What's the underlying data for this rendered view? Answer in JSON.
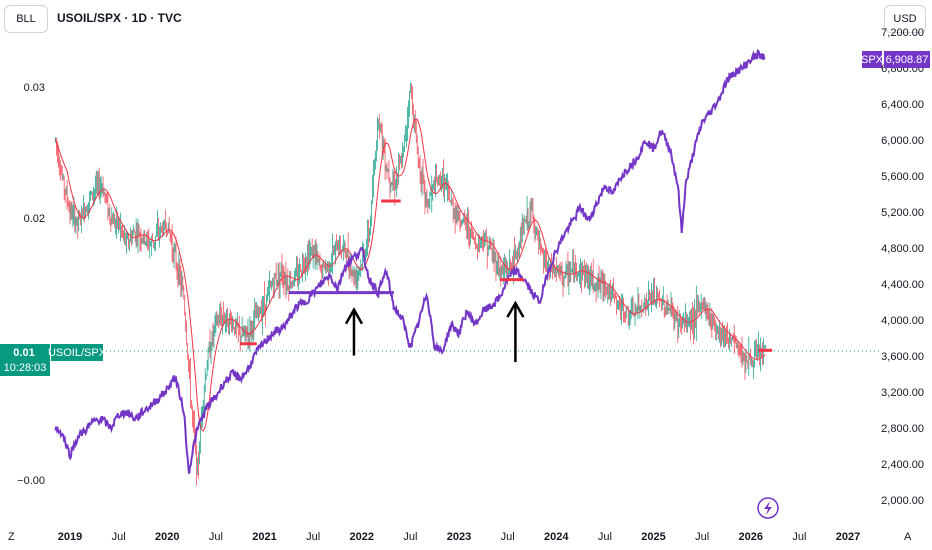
{
  "toolbar": {
    "left_button": "BLL",
    "currency": "USD",
    "title": "USOIL/SPX · 1D · TVC"
  },
  "badges": {
    "ratio_value": "0.01",
    "ratio_label": "USOIL/SPX",
    "countdown": "10:28:03",
    "spx_label": "SPX",
    "spx_value": "6,908.87"
  },
  "colors": {
    "spx": "#7436c6",
    "ratio_badge": "#089981",
    "ema_fast": "#f23645",
    "ma_slow": "#4c9ae0",
    "candle_up": "#089981",
    "candle_down": "#f23645",
    "marker": "#f23645",
    "arrow": "#000000"
  },
  "icons": {
    "lightning": "lightning-icon"
  },
  "bottom_corner_left": "Z",
  "bottom_corner_right": "A",
  "chart_data": {
    "type": "line",
    "title": "USOIL/SPX · 1D · TVC",
    "x_ticks": [
      {
        "label": "2019",
        "t": 2019.0,
        "year": true
      },
      {
        "label": "Jul",
        "t": 2019.5
      },
      {
        "label": "2020",
        "t": 2020.0,
        "year": true
      },
      {
        "label": "Jul",
        "t": 2020.5
      },
      {
        "label": "2021",
        "t": 2021.0,
        "year": true
      },
      {
        "label": "Jul",
        "t": 2021.5
      },
      {
        "label": "2022",
        "t": 2022.0,
        "year": true
      },
      {
        "label": "Jul",
        "t": 2022.5
      },
      {
        "label": "2023",
        "t": 2023.0,
        "year": true
      },
      {
        "label": "Jul",
        "t": 2023.5
      },
      {
        "label": "2024",
        "t": 2024.0,
        "year": true
      },
      {
        "label": "Jul",
        "t": 2024.5
      },
      {
        "label": "2025",
        "t": 2025.0,
        "year": true
      },
      {
        "label": "Jul",
        "t": 2025.5
      },
      {
        "label": "2026",
        "t": 2026.0,
        "year": true
      },
      {
        "label": "Jul",
        "t": 2026.5
      },
      {
        "label": "2027",
        "t": 2027.0,
        "year": true
      }
    ],
    "left_axis": {
      "ticks": [
        {
          "label": "0.03",
          "v": 0.03
        },
        {
          "label": "0.02",
          "v": 0.02
        },
        {
          "label": "−0.00",
          "v": 0.0
        }
      ],
      "range": [
        0.0,
        0.03
      ]
    },
    "right_axis": {
      "ticks": [
        {
          "label": "7,200.00",
          "v": 7200
        },
        {
          "label": "6,800.00",
          "v": 6800
        },
        {
          "label": "6,400.00",
          "v": 6400
        },
        {
          "label": "6,000.00",
          "v": 6000
        },
        {
          "label": "5,600.00",
          "v": 5600
        },
        {
          "label": "5,200.00",
          "v": 5200
        },
        {
          "label": "4,800.00",
          "v": 4800
        },
        {
          "label": "4,400.00",
          "v": 4400
        },
        {
          "label": "4,000.00",
          "v": 4000
        },
        {
          "label": "3,600.00",
          "v": 3600
        },
        {
          "label": "3,200.00",
          "v": 3200
        },
        {
          "label": "2,800.00",
          "v": 2800
        },
        {
          "label": "2,400.00",
          "v": 2400
        },
        {
          "label": "2,000.00",
          "v": 2000
        }
      ],
      "range": [
        2000,
        7200
      ]
    },
    "series": [
      {
        "name": "USOIL/SPX",
        "kind": "candles",
        "points": [
          [
            2018.85,
            0.026
          ],
          [
            2018.92,
            0.023
          ],
          [
            2019.0,
            0.0205
          ],
          [
            2019.08,
            0.0195
          ],
          [
            2019.17,
            0.021
          ],
          [
            2019.25,
            0.0222
          ],
          [
            2019.33,
            0.0225
          ],
          [
            2019.42,
            0.02
          ],
          [
            2019.5,
            0.0195
          ],
          [
            2019.58,
            0.018
          ],
          [
            2019.67,
            0.019
          ],
          [
            2019.75,
            0.0185
          ],
          [
            2019.83,
            0.018
          ],
          [
            2019.92,
            0.019
          ],
          [
            2020.0,
            0.0195
          ],
          [
            2020.08,
            0.017
          ],
          [
            2020.17,
            0.014
          ],
          [
            2020.25,
            0.0055
          ],
          [
            2020.31,
            0.0005
          ],
          [
            2020.36,
            0.006
          ],
          [
            2020.42,
            0.0095
          ],
          [
            2020.5,
            0.012
          ],
          [
            2020.58,
            0.0125
          ],
          [
            2020.67,
            0.012
          ],
          [
            2020.75,
            0.011
          ],
          [
            2020.83,
            0.0112
          ],
          [
            2020.92,
            0.0125
          ],
          [
            2021.0,
            0.0135
          ],
          [
            2021.08,
            0.015
          ],
          [
            2021.17,
            0.016
          ],
          [
            2021.25,
            0.015
          ],
          [
            2021.33,
            0.0155
          ],
          [
            2021.42,
            0.017
          ],
          [
            2021.5,
            0.0175
          ],
          [
            2021.58,
            0.016
          ],
          [
            2021.67,
            0.0165
          ],
          [
            2021.75,
            0.018
          ],
          [
            2021.83,
            0.0175
          ],
          [
            2021.92,
            0.0155
          ],
          [
            2022.0,
            0.0165
          ],
          [
            2022.08,
            0.019
          ],
          [
            2022.17,
            0.028
          ],
          [
            2022.25,
            0.024
          ],
          [
            2022.33,
            0.0225
          ],
          [
            2022.42,
            0.0245
          ],
          [
            2022.5,
            0.03
          ],
          [
            2022.58,
            0.0245
          ],
          [
            2022.67,
            0.021
          ],
          [
            2022.75,
            0.0225
          ],
          [
            2022.83,
            0.023
          ],
          [
            2022.92,
            0.021
          ],
          [
            2023.0,
            0.02
          ],
          [
            2023.08,
            0.0195
          ],
          [
            2023.17,
            0.018
          ],
          [
            2023.25,
            0.0185
          ],
          [
            2023.33,
            0.0175
          ],
          [
            2023.42,
            0.016
          ],
          [
            2023.5,
            0.016
          ],
          [
            2023.58,
            0.017
          ],
          [
            2023.67,
            0.0195
          ],
          [
            2023.75,
            0.0205
          ],
          [
            2023.83,
            0.0175
          ],
          [
            2023.92,
            0.016
          ],
          [
            2024.0,
            0.016
          ],
          [
            2024.08,
            0.0155
          ],
          [
            2024.17,
            0.016
          ],
          [
            2024.25,
            0.016
          ],
          [
            2024.33,
            0.0155
          ],
          [
            2024.42,
            0.015
          ],
          [
            2024.5,
            0.015
          ],
          [
            2024.58,
            0.014
          ],
          [
            2024.67,
            0.013
          ],
          [
            2024.75,
            0.0125
          ],
          [
            2024.83,
            0.013
          ],
          [
            2024.92,
            0.0135
          ],
          [
            2025.0,
            0.014
          ],
          [
            2025.08,
            0.0135
          ],
          [
            2025.17,
            0.013
          ],
          [
            2025.25,
            0.012
          ],
          [
            2025.33,
            0.012
          ],
          [
            2025.42,
            0.0125
          ],
          [
            2025.5,
            0.0135
          ],
          [
            2025.58,
            0.0125
          ],
          [
            2025.67,
            0.0115
          ],
          [
            2025.75,
            0.011
          ],
          [
            2025.83,
            0.0105
          ],
          [
            2025.92,
            0.0095
          ],
          [
            2026.0,
            0.009
          ],
          [
            2026.08,
            0.0095
          ],
          [
            2026.15,
            0.01
          ]
        ]
      },
      {
        "name": "SPX",
        "kind": "line",
        "points": [
          [
            2018.85,
            2800
          ],
          [
            2018.92,
            2740
          ],
          [
            2019.0,
            2500
          ],
          [
            2019.08,
            2700
          ],
          [
            2019.17,
            2790
          ],
          [
            2019.25,
            2880
          ],
          [
            2019.33,
            2900
          ],
          [
            2019.42,
            2800
          ],
          [
            2019.5,
            2950
          ],
          [
            2019.58,
            2980
          ],
          [
            2019.67,
            2900
          ],
          [
            2019.75,
            2980
          ],
          [
            2019.83,
            3050
          ],
          [
            2019.92,
            3140
          ],
          [
            2020.0,
            3230
          ],
          [
            2020.08,
            3370
          ],
          [
            2020.17,
            3000
          ],
          [
            2020.22,
            2300
          ],
          [
            2020.28,
            2650
          ],
          [
            2020.33,
            2850
          ],
          [
            2020.42,
            3050
          ],
          [
            2020.5,
            3150
          ],
          [
            2020.58,
            3300
          ],
          [
            2020.67,
            3400
          ],
          [
            2020.75,
            3350
          ],
          [
            2020.83,
            3450
          ],
          [
            2020.92,
            3650
          ],
          [
            2021.0,
            3750
          ],
          [
            2021.08,
            3850
          ],
          [
            2021.17,
            3900
          ],
          [
            2021.25,
            4000
          ],
          [
            2021.33,
            4150
          ],
          [
            2021.42,
            4200
          ],
          [
            2021.5,
            4300
          ],
          [
            2021.58,
            4400
          ],
          [
            2021.67,
            4500
          ],
          [
            2021.75,
            4350
          ],
          [
            2021.83,
            4600
          ],
          [
            2021.92,
            4700
          ],
          [
            2022.0,
            4780
          ],
          [
            2022.08,
            4450
          ],
          [
            2022.17,
            4300
          ],
          [
            2022.25,
            4550
          ],
          [
            2022.33,
            4150
          ],
          [
            2022.42,
            4000
          ],
          [
            2022.5,
            3700
          ],
          [
            2022.58,
            3950
          ],
          [
            2022.67,
            4300
          ],
          [
            2022.75,
            3700
          ],
          [
            2022.83,
            3650
          ],
          [
            2022.92,
            3950
          ],
          [
            2023.0,
            3850
          ],
          [
            2023.08,
            4100
          ],
          [
            2023.17,
            3950
          ],
          [
            2023.25,
            4100
          ],
          [
            2023.33,
            4150
          ],
          [
            2023.42,
            4250
          ],
          [
            2023.5,
            4450
          ],
          [
            2023.58,
            4550
          ],
          [
            2023.67,
            4450
          ],
          [
            2023.75,
            4300
          ],
          [
            2023.83,
            4200
          ],
          [
            2023.92,
            4550
          ],
          [
            2024.0,
            4770
          ],
          [
            2024.08,
            4950
          ],
          [
            2024.17,
            5100
          ],
          [
            2024.25,
            5250
          ],
          [
            2024.33,
            5100
          ],
          [
            2024.42,
            5300
          ],
          [
            2024.5,
            5500
          ],
          [
            2024.58,
            5400
          ],
          [
            2024.67,
            5600
          ],
          [
            2024.75,
            5700
          ],
          [
            2024.83,
            5800
          ],
          [
            2024.92,
            6000
          ],
          [
            2025.0,
            5900
          ],
          [
            2025.08,
            6100
          ],
          [
            2025.17,
            5900
          ],
          [
            2025.25,
            5500
          ],
          [
            2025.29,
            4980
          ],
          [
            2025.33,
            5500
          ],
          [
            2025.42,
            5900
          ],
          [
            2025.5,
            6200
          ],
          [
            2025.58,
            6300
          ],
          [
            2025.67,
            6450
          ],
          [
            2025.75,
            6650
          ],
          [
            2025.83,
            6750
          ],
          [
            2025.92,
            6800
          ],
          [
            2026.0,
            6900
          ],
          [
            2026.08,
            6950
          ],
          [
            2026.15,
            6908.87
          ]
        ]
      }
    ],
    "horizontal_markers": [
      {
        "t0": 2020.75,
        "t1": 2020.92,
        "v": 0.0104,
        "color": "#f23645"
      },
      {
        "t0": 2022.2,
        "t1": 2022.4,
        "v": 0.0213,
        "color": "#f23645"
      },
      {
        "t0": 2023.42,
        "t1": 2023.67,
        "v": 0.0153,
        "color": "#f23645"
      },
      {
        "t0": 2026.08,
        "t1": 2026.22,
        "v": 0.0099,
        "color": "#f23645"
      },
      {
        "t0": 2021.25,
        "t1": 2022.33,
        "v": 0.0143,
        "color": "#7436c6"
      }
    ],
    "arrows": [
      {
        "t": 2021.92,
        "v_tip": 0.013,
        "v_tail": 0.0095
      },
      {
        "t": 2023.58,
        "v_tip": 0.0135,
        "v_tail": 0.009
      }
    ],
    "current_value_line": 0.01,
    "grid": false,
    "legend": "none"
  }
}
